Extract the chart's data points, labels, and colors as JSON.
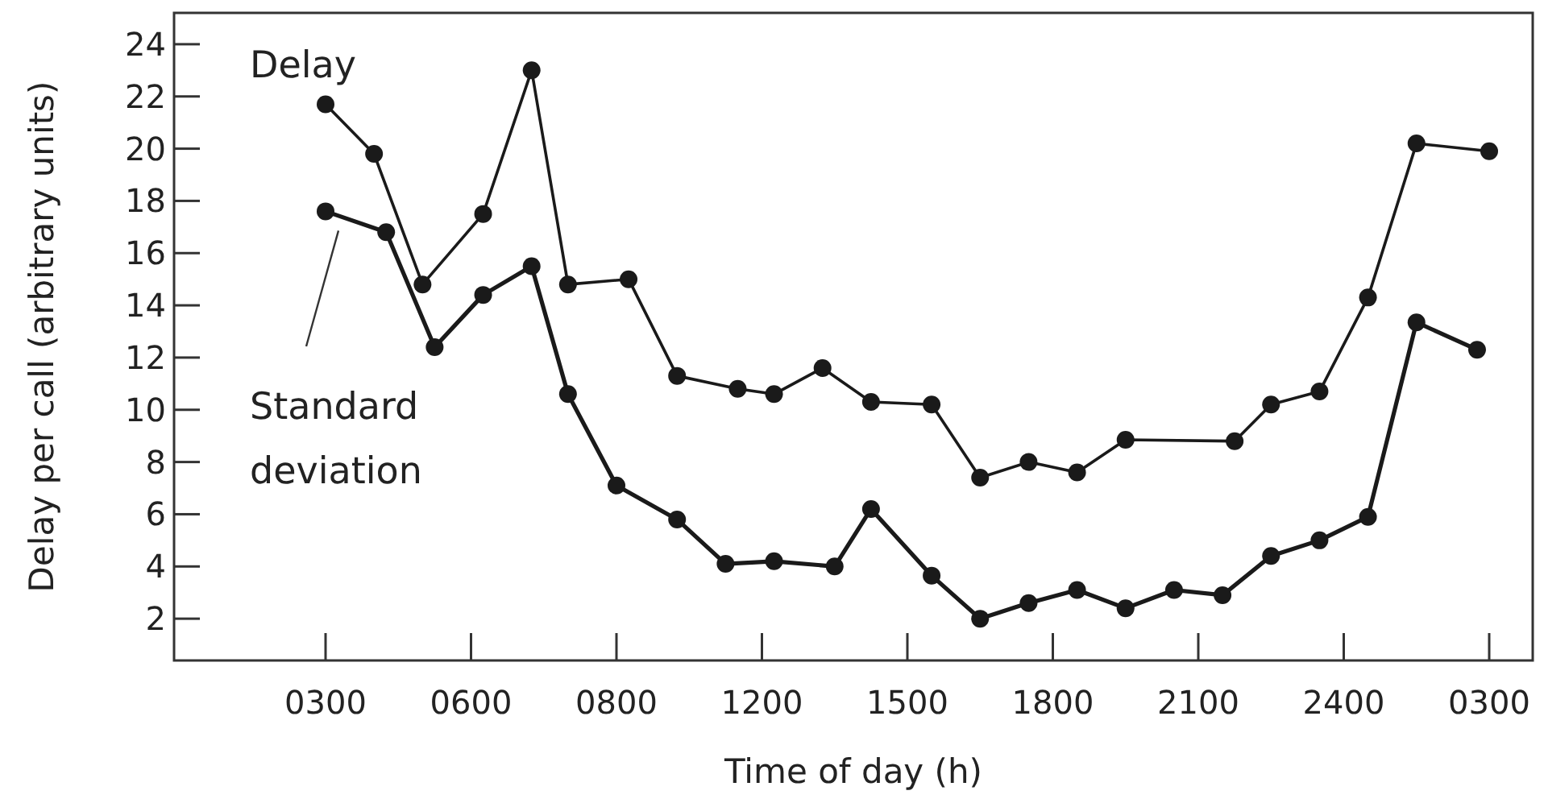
{
  "chart_data": {
    "type": "line",
    "xlabel": "Time of day (h)",
    "ylabel": "Delay per call (arbitrary units)",
    "categories": [
      "0300",
      null,
      null,
      null,
      null,
      null,
      null,
      null,
      null,
      null,
      null,
      null,
      "0600",
      null,
      null,
      null,
      null,
      null,
      null,
      null,
      null,
      null,
      null,
      null,
      "0800",
      null,
      null,
      null,
      null,
      null,
      null,
      null,
      null,
      null,
      null,
      null,
      "1200",
      null,
      null,
      null,
      null,
      null,
      null,
      null,
      null,
      null,
      null,
      null,
      "1500",
      null,
      null,
      null,
      null,
      null,
      null,
      null,
      null,
      null,
      null,
      null,
      "1800",
      null,
      null,
      null,
      null,
      null,
      null,
      null,
      null,
      null,
      null,
      null,
      "2100",
      null,
      null,
      null,
      null,
      null,
      null,
      null,
      null,
      null,
      null,
      null,
      "2400",
      null,
      null,
      null,
      null,
      null,
      null,
      null,
      null,
      null,
      null,
      null,
      "0300"
    ],
    "ylim": [
      0.4,
      25.2
    ],
    "yticks": [
      2,
      4,
      6,
      8,
      10,
      12,
      14,
      16,
      18,
      20,
      22,
      24
    ],
    "grid": false,
    "marker": "circle",
    "line_style": "solid",
    "series": [
      {
        "name": "Delay",
        "color": "#1a1a1a",
        "values": [
          21.7,
          null,
          null,
          null,
          19.8,
          null,
          null,
          null,
          14.8,
          null,
          null,
          null,
          null,
          17.5,
          null,
          null,
          null,
          23.0,
          null,
          null,
          14.8,
          null,
          null,
          null,
          null,
          15.0,
          null,
          null,
          null,
          11.3,
          null,
          null,
          null,
          null,
          10.8,
          null,
          null,
          10.6,
          null,
          null,
          null,
          11.6,
          null,
          null,
          null,
          10.3,
          null,
          null,
          null,
          null,
          10.2,
          null,
          null,
          null,
          7.4,
          null,
          null,
          null,
          8.0,
          null,
          null,
          null,
          7.6,
          null,
          null,
          null,
          8.85,
          null,
          null,
          null,
          null,
          null,
          null,
          null,
          null,
          8.8,
          null,
          null,
          10.2,
          null,
          null,
          null,
          10.7,
          null,
          null,
          null,
          14.3,
          null,
          null,
          null,
          20.2,
          null,
          null,
          null,
          null,
          null,
          19.9
        ]
      },
      {
        "name": "Standard deviation",
        "color": "#1a1a1a",
        "values": [
          17.6,
          null,
          null,
          null,
          null,
          16.8,
          null,
          null,
          null,
          12.4,
          null,
          null,
          null,
          14.4,
          null,
          null,
          null,
          15.5,
          null,
          null,
          10.6,
          null,
          null,
          null,
          7.1,
          null,
          null,
          null,
          null,
          5.8,
          null,
          null,
          null,
          4.1,
          null,
          null,
          null,
          4.2,
          null,
          null,
          null,
          null,
          4.0,
          null,
          null,
          6.2,
          null,
          null,
          null,
          null,
          3.65,
          null,
          null,
          null,
          2.0,
          null,
          null,
          null,
          2.6,
          null,
          null,
          null,
          3.1,
          null,
          null,
          null,
          2.4,
          null,
          null,
          null,
          3.1,
          null,
          null,
          null,
          2.9,
          null,
          null,
          null,
          4.4,
          null,
          null,
          null,
          5.0,
          null,
          null,
          null,
          5.9,
          null,
          null,
          null,
          13.35,
          null,
          null,
          null,
          null,
          12.3,
          null
        ]
      }
    ]
  }
}
